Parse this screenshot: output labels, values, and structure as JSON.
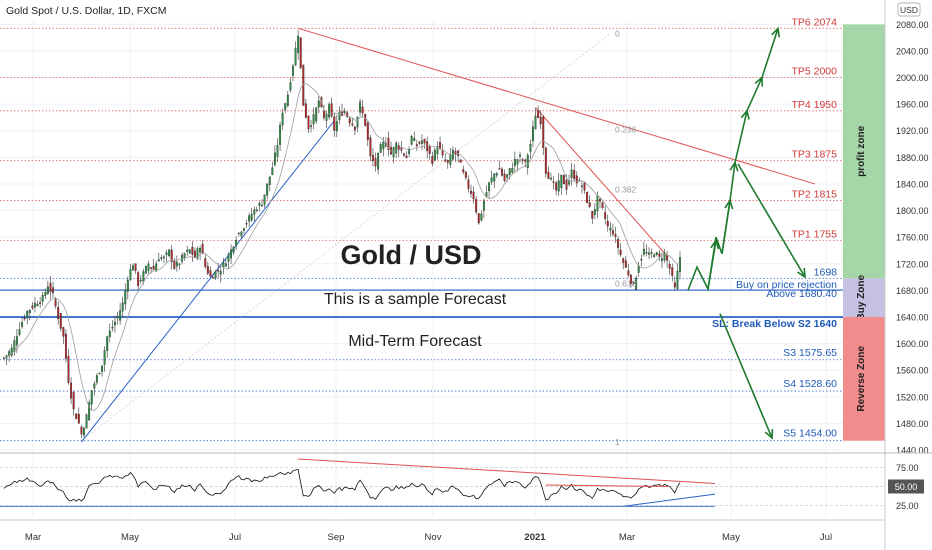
{
  "chart_data": {
    "type": "candlestick",
    "symbol_header": "Gold Spot / U.S. Dollar, 1D, FXCM",
    "currency_badge": "USD",
    "x_ticks": [
      "Mar",
      "May",
      "Jul",
      "Sep",
      "Nov",
      "2021",
      "Mar",
      "May",
      "Jul"
    ],
    "y_ticks": [
      2080,
      2040,
      2000,
      1960,
      1920,
      1880,
      1840,
      1800,
      1760,
      1720,
      1680,
      1640,
      1600,
      1560,
      1520,
      1480,
      1440
    ],
    "y_range": [
      1440,
      2085
    ],
    "rsi_ticks": [
      "75.00",
      "50.00",
      "25.00"
    ],
    "rsi_badge": "50.00",
    "annotations": {
      "main_title": "Gold / USD",
      "subtitle": "This is a sample Forecast",
      "subtitle2": "Mid-Term Forecast",
      "buy_label": "Buy on price rejection",
      "above_label": "Above 1680.40",
      "sl_label": "SL: Break Below S2 1640"
    },
    "fib_labels": [
      "0",
      "0.236",
      "0.382",
      "0.618",
      "1"
    ],
    "targets": [
      {
        "label": "TP6 2074",
        "value": 2074
      },
      {
        "label": "TP5 2000",
        "value": 2000
      },
      {
        "label": "TP4 1950",
        "value": 1950
      },
      {
        "label": "TP3 1875",
        "value": 1875
      },
      {
        "label": "TP2 1815",
        "value": 1815
      },
      {
        "label": "TP1 1755",
        "value": 1755
      }
    ],
    "level_1698": {
      "label": "1698",
      "value": 1698
    },
    "supports": [
      {
        "label": "S3 1575.65",
        "value": 1575.65
      },
      {
        "label": "S4 1528.60",
        "value": 1528.6
      },
      {
        "label": "S5 1454.00",
        "value": 1454
      }
    ],
    "support_lines": [
      1680.4,
      1640
    ],
    "zones": [
      {
        "label": "profit zone",
        "from": 1698,
        "to": 2080,
        "color": "#a5d6a7"
      },
      {
        "label": "Buy Zone",
        "from": 1640,
        "to": 1698,
        "color": "#c5c1e3"
      },
      {
        "label": "Reverse Zone",
        "from": 1454,
        "to": 1640,
        "color": "#f28b8b"
      }
    ],
    "price_anchors": [
      [
        0,
        1578
      ],
      [
        3,
        1592
      ],
      [
        6,
        1625
      ],
      [
        9,
        1648
      ],
      [
        12,
        1660
      ],
      [
        15,
        1668
      ],
      [
        17,
        1688
      ],
      [
        19,
        1672
      ],
      [
        21,
        1640
      ],
      [
        23,
        1610
      ],
      [
        25,
        1545
      ],
      [
        27,
        1500
      ],
      [
        29,
        1480
      ],
      [
        30,
        1464
      ],
      [
        32,
        1490
      ],
      [
        34,
        1530
      ],
      [
        36,
        1550
      ],
      [
        38,
        1570
      ],
      [
        40,
        1610
      ],
      [
        42,
        1625
      ],
      [
        44,
        1640
      ],
      [
        46,
        1660
      ],
      [
        48,
        1700
      ],
      [
        50,
        1720
      ],
      [
        52,
        1690
      ],
      [
        54,
        1705
      ],
      [
        56,
        1720
      ],
      [
        58,
        1712
      ],
      [
        60,
        1730
      ],
      [
        62,
        1728
      ],
      [
        64,
        1738
      ],
      [
        66,
        1715
      ],
      [
        68,
        1722
      ],
      [
        70,
        1735
      ],
      [
        72,
        1740
      ],
      [
        74,
        1730
      ],
      [
        76,
        1748
      ],
      [
        78,
        1716
      ],
      [
        80,
        1700
      ],
      [
        82,
        1708
      ],
      [
        84,
        1712
      ],
      [
        86,
        1725
      ],
      [
        88,
        1740
      ],
      [
        90,
        1760
      ],
      [
        92,
        1772
      ],
      [
        94,
        1782
      ],
      [
        96,
        1795
      ],
      [
        98,
        1805
      ],
      [
        100,
        1812
      ],
      [
        102,
        1838
      ],
      [
        104,
        1865
      ],
      [
        106,
        1900
      ],
      [
        108,
        1950
      ],
      [
        110,
        1975
      ],
      [
        112,
        2020
      ],
      [
        114,
        2066
      ],
      [
        116,
        1960
      ],
      [
        118,
        1925
      ],
      [
        120,
        1940
      ],
      [
        122,
        1965
      ],
      [
        124,
        1938
      ],
      [
        126,
        1955
      ],
      [
        128,
        1922
      ],
      [
        130,
        1945
      ],
      [
        132,
        1950
      ],
      [
        134,
        1935
      ],
      [
        136,
        1925
      ],
      [
        138,
        1960
      ],
      [
        140,
        1930
      ],
      [
        142,
        1880
      ],
      [
        144,
        1868
      ],
      [
        146,
        1895
      ],
      [
        148,
        1905
      ],
      [
        150,
        1885
      ],
      [
        152,
        1900
      ],
      [
        154,
        1890
      ],
      [
        156,
        1880
      ],
      [
        158,
        1910
      ],
      [
        160,
        1898
      ],
      [
        162,
        1905
      ],
      [
        164,
        1892
      ],
      [
        166,
        1875
      ],
      [
        168,
        1900
      ],
      [
        170,
        1880
      ],
      [
        172,
        1870
      ],
      [
        174,
        1890
      ],
      [
        176,
        1880
      ],
      [
        178,
        1855
      ],
      [
        180,
        1835
      ],
      [
        182,
        1820
      ],
      [
        184,
        1780
      ],
      [
        186,
        1815
      ],
      [
        188,
        1840
      ],
      [
        190,
        1855
      ],
      [
        192,
        1862
      ],
      [
        194,
        1845
      ],
      [
        196,
        1860
      ],
      [
        198,
        1875
      ],
      [
        200,
        1880
      ],
      [
        202,
        1870
      ],
      [
        204,
        1900
      ],
      [
        206,
        1945
      ],
      [
        208,
        1935
      ],
      [
        210,
        1860
      ],
      [
        212,
        1845
      ],
      [
        214,
        1830
      ],
      [
        216,
        1850
      ],
      [
        218,
        1835
      ],
      [
        220,
        1858
      ],
      [
        222,
        1845
      ],
      [
        224,
        1838
      ],
      [
        226,
        1815
      ],
      [
        228,
        1790
      ],
      [
        230,
        1818
      ],
      [
        232,
        1800
      ],
      [
        234,
        1775
      ],
      [
        236,
        1768
      ],
      [
        238,
        1745
      ],
      [
        240,
        1722
      ],
      [
        242,
        1705
      ],
      [
        244,
        1685
      ],
      [
        246,
        1720
      ],
      [
        248,
        1740
      ],
      [
        250,
        1732
      ],
      [
        252,
        1738
      ],
      [
        254,
        1728
      ],
      [
        256,
        1735
      ],
      [
        258,
        1713
      ],
      [
        260,
        1682
      ],
      [
        262,
        1730
      ]
    ]
  }
}
